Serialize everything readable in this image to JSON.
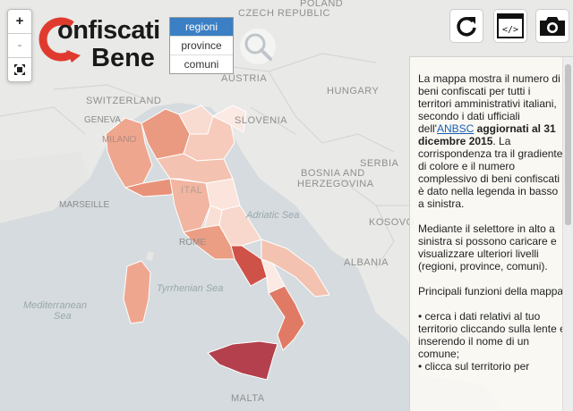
{
  "countries": {
    "poland": "POLAND",
    "czech": "CZECH REPUBLIC",
    "switzerland": "SWITZERLAND",
    "austria": "AUSTRIA",
    "slovenia": "SLOVENIA",
    "hungary": "HUNGARY",
    "bosnia_line1": "BOSNIA AND",
    "bosnia_line2": "HERZEGOVINA",
    "serbia": "SERBIA",
    "kosovo": "KOSOVO",
    "albania": "ALBANIA",
    "malta": "MALTA",
    "italy": "ITAL"
  },
  "cities": {
    "geneva": "GENEVA",
    "marseille": "MARSEILLE",
    "rome": "ROME",
    "milano": "MILANO"
  },
  "seas": {
    "adriatic": "Adriatic Sea",
    "tyrrhenian": "Tyrrhenian Sea",
    "mediterranean_line1": "Mediterranean",
    "mediterranean_line2": "Sea"
  },
  "zoom": {
    "in_label": "+",
    "out_label": "-",
    "fullscreen_icon": "fullscreen-icon"
  },
  "logo": {
    "line1": "onfiscati",
    "line2": "Bene",
    "brand_color": "#e03a2f"
  },
  "level_selector": {
    "options": [
      "regioni",
      "province",
      "comuni"
    ],
    "selected": "regioni"
  },
  "toolbar": {
    "refresh_icon": "refresh-icon",
    "embed_icon": "code-icon",
    "embed_label": "</>",
    "screenshot_icon": "camera-icon"
  },
  "info": {
    "p1_a": "La mappa mostra il numero di beni confiscati per tutti i territori amministrativi italiani, secondo i dati ufficiali dell'",
    "p1_link": "ANBSC",
    "p1_bold": " aggiornati al 31 dicembre 2015",
    "p1_b": ". La corrispondenza tra il gradiente di colore e il numero complessivo di beni confiscati è dato nella legenda in basso a sinistra.",
    "p2": "Mediante il selettore in alto a sinistra si possono caricare e visualizzare ulteriori livelli (regioni, province, comuni).",
    "p3": "Principali funzioni della mappa:",
    "bullet1": "• cerca i dati relativi al tuo territorio cliccando sulla lente e inserendo il nome di un comune;",
    "bullet2": "• clicca sul territorio per"
  },
  "choropleth_colors": {
    "lowest": "#fbe9e3",
    "low": "#f6cbbc",
    "mid": "#efa68f",
    "high": "#e07a64",
    "very_high": "#cf5249",
    "max": "#b3404c"
  }
}
